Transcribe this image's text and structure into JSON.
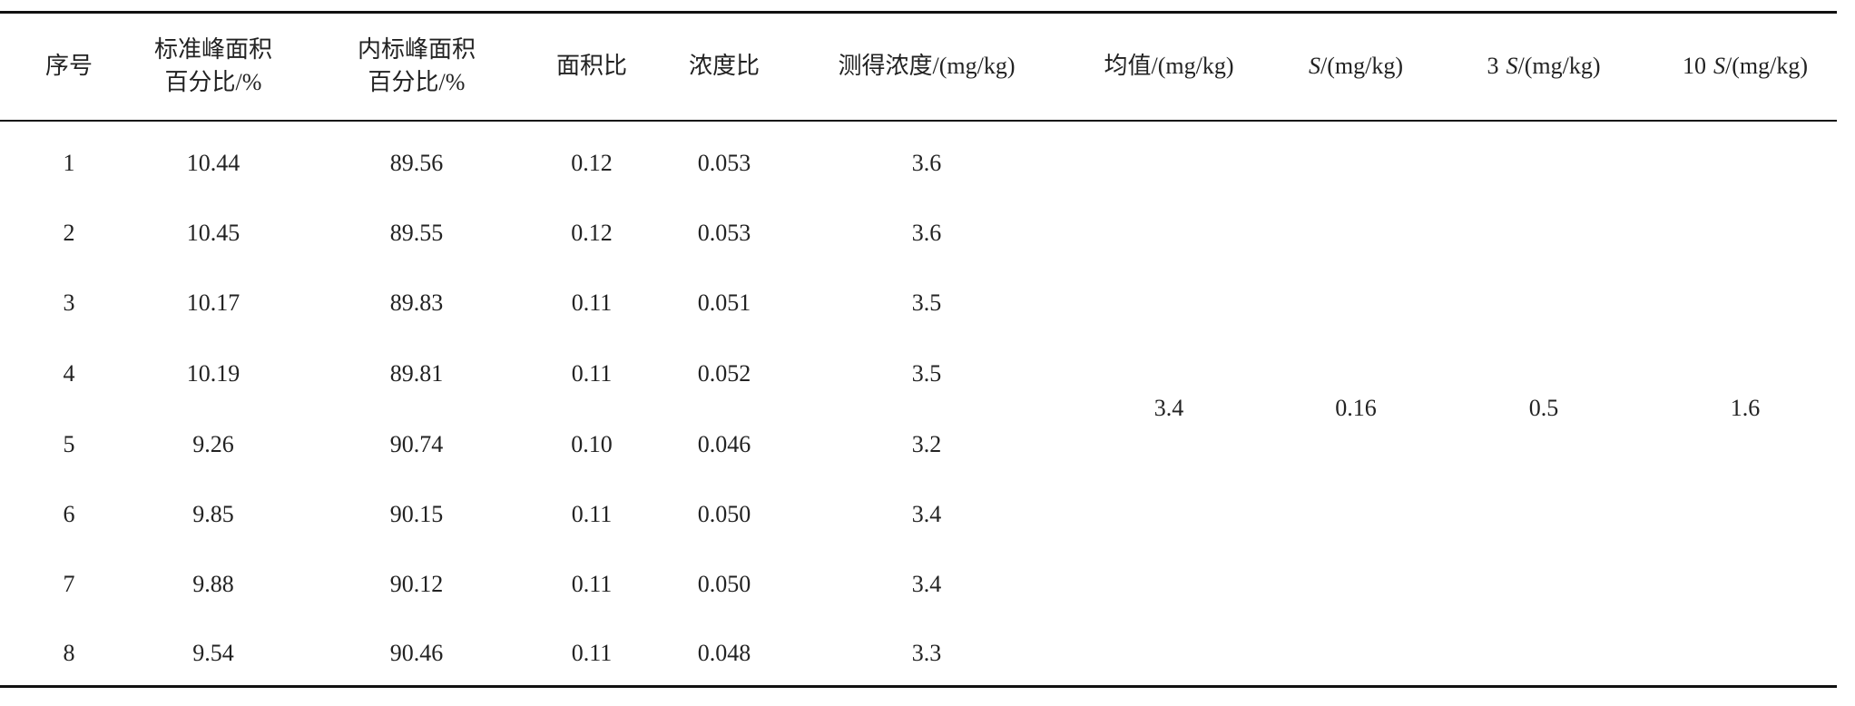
{
  "table": {
    "header": [
      "序号",
      [
        "标准峰面积",
        "百分比/%"
      ],
      [
        "内标峰面积",
        "百分比/%"
      ],
      "面积比",
      "浓度比",
      "测得浓度/(mg/kg)",
      "均值/(mg/kg)",
      {
        "italic": "S",
        "text": "/(mg/kg)"
      },
      {
        "number": "3",
        "italic": "S",
        "text": "/(mg/kg)"
      },
      {
        "number": "10",
        "italic": "S",
        "text": "/(mg/kg)"
      }
    ],
    "rows": [
      [
        "1",
        "10.44",
        "89.56",
        "0.12",
        "0.053",
        "3.6"
      ],
      [
        "2",
        "10.45",
        "89.55",
        "0.12",
        "0.053",
        "3.6"
      ],
      [
        "3",
        "10.17",
        "89.83",
        "0.11",
        "0.051",
        "3.5"
      ],
      [
        "4",
        "10.19",
        "89.81",
        "0.11",
        "0.052",
        "3.5"
      ],
      [
        "5",
        "9.26",
        "90.74",
        "0.10",
        "0.046",
        "3.2"
      ],
      [
        "6",
        "9.85",
        "90.15",
        "0.11",
        "0.050",
        "3.4"
      ],
      [
        "7",
        "9.88",
        "90.12",
        "0.11",
        "0.050",
        "3.4"
      ],
      [
        "8",
        "9.54",
        "90.46",
        "0.11",
        "0.048",
        "3.3"
      ]
    ],
    "merged": [
      "3.4",
      "0.16",
      "0.5",
      "1.6"
    ]
  }
}
